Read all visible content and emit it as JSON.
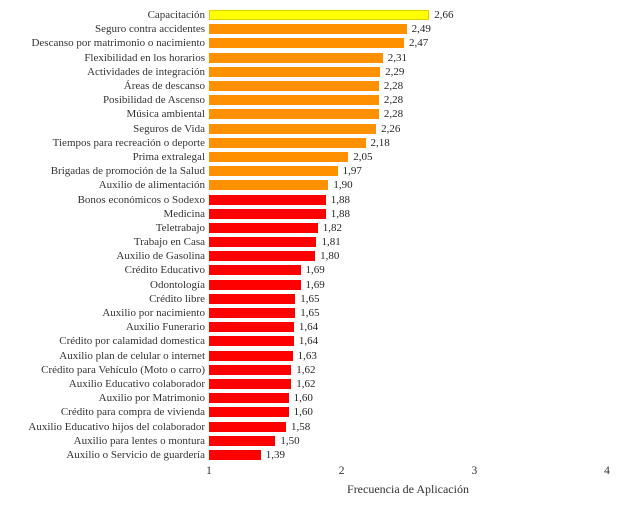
{
  "chart_data": {
    "type": "bar",
    "orientation": "horizontal",
    "title": "",
    "xlabel": "Frecuencia de Aplicación",
    "ylabel": "",
    "xlim": [
      1,
      4
    ],
    "x_ticks": [
      "1",
      "2",
      "3",
      "4"
    ],
    "grid": false,
    "legend": "none",
    "categories": [
      "Capacitación",
      "Seguro contra accidentes",
      "Descanso por matrimonio o nacimiento",
      "Flexibilidad en los horarios",
      "Actividades de integración",
      "Áreas de descanso",
      "Posibilidad de Ascenso",
      "Música ambiental",
      "Seguros de Vida",
      "Tiempos para recreación o deporte",
      "Prima extralegal",
      "Brigadas de promoción de la Salud",
      "Auxilio de alimentación",
      "Bonos económicos o Sodexo",
      "Medicina",
      "Teletrabajo",
      "Trabajo en Casa",
      "Auxilio de Gasolina",
      "Crédito Educativo",
      "Odontología",
      "Crédito libre",
      "Auxilio por nacimiento",
      "Auxilio Funerario",
      "Crédito por calamidad domestica",
      "Auxilio plan de celular o internet",
      "Crédito para Vehículo (Moto o carro)",
      "Auxilio Educativo colaborador",
      "Auxilio por Matrimonio",
      "Crédito para compra de vivienda",
      "Auxilio Educativo hijos del colaborador",
      "Auxilio para lentes o montura",
      "Auxilio o Servicio de guardería"
    ],
    "values": [
      2.66,
      2.49,
      2.47,
      2.31,
      2.29,
      2.28,
      2.28,
      2.28,
      2.26,
      2.18,
      2.05,
      1.97,
      1.9,
      1.88,
      1.88,
      1.82,
      1.81,
      1.8,
      1.69,
      1.69,
      1.65,
      1.65,
      1.64,
      1.64,
      1.63,
      1.62,
      1.62,
      1.6,
      1.6,
      1.58,
      1.5,
      1.39
    ],
    "value_labels": [
      "2,66",
      "2,49",
      "2,47",
      "2,31",
      "2,29",
      "2,28",
      "2,28",
      "2,28",
      "2,26",
      "2,18",
      "2,05",
      "1,97",
      "1,90",
      "1,88",
      "1,88",
      "1,82",
      "1,81",
      "1,80",
      "1,69",
      "1,69",
      "1,65",
      "1,65",
      "1,64",
      "1,64",
      "1,63",
      "1,62",
      "1,62",
      "1,60",
      "1,60",
      "1,58",
      "1,50",
      "1,39"
    ],
    "bar_colors": [
      "#FFFF00",
      "#FF9100",
      "#FF9100",
      "#FF9100",
      "#FF9100",
      "#FF9100",
      "#FF9100",
      "#FF9100",
      "#FF9100",
      "#FF9100",
      "#FF9100",
      "#FF9100",
      "#FF9100",
      "#FF0000",
      "#FF0000",
      "#FF0000",
      "#FF0000",
      "#FF0000",
      "#FF0000",
      "#FF0000",
      "#FF0000",
      "#FF0000",
      "#FF0000",
      "#FF0000",
      "#FF0000",
      "#FF0000",
      "#FF0000",
      "#FF0000",
      "#FF0000",
      "#FF0000",
      "#FF0000",
      "#FF0000"
    ],
    "accent_colors": {
      "yellow": "#FFFF00",
      "orange": "#FF9100",
      "red": "#FF0000"
    }
  }
}
